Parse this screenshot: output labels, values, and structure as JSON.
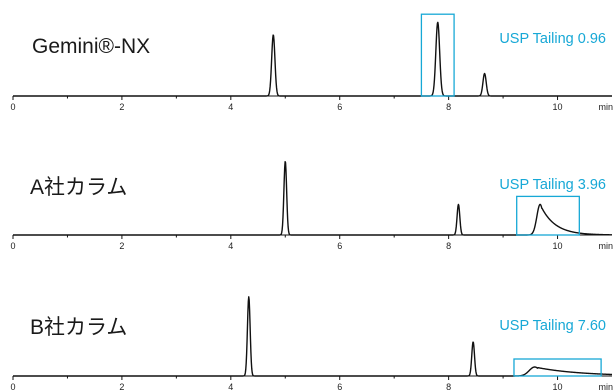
{
  "colors": {
    "accent": "#17a8d6",
    "trace": "#111111"
  },
  "chart_data": [
    {
      "type": "line",
      "title": "Gemini®-NX",
      "annotation": "USP Tailing 0.96",
      "x_unit": "min",
      "xlim": [
        0,
        11
      ],
      "ticks": [
        0,
        2,
        4,
        6,
        8,
        10
      ],
      "grid": false,
      "peaks": [
        {
          "rt": 4.78,
          "height": 0.68,
          "width": 0.03,
          "tail": 0.03
        },
        {
          "rt": 7.8,
          "height": 0.82,
          "width": 0.035,
          "tail": 0.035
        },
        {
          "rt": 8.66,
          "height": 0.25,
          "width": 0.03,
          "tail": 0.03
        }
      ],
      "highlight": {
        "x_from": 7.5,
        "x_to": 8.1
      }
    },
    {
      "type": "line",
      "title": "A社カラム",
      "annotation": "USP Tailing 3.96",
      "x_unit": "min",
      "xlim": [
        0,
        11
      ],
      "ticks": [
        0,
        2,
        4,
        6,
        8,
        10
      ],
      "grid": false,
      "peaks": [
        {
          "rt": 5.0,
          "height": 0.82,
          "width": 0.025,
          "tail": 0.03
        },
        {
          "rt": 8.18,
          "height": 0.34,
          "width": 0.025,
          "tail": 0.03
        },
        {
          "rt": 9.68,
          "height": 0.34,
          "width": 0.06,
          "tail": 0.26
        }
      ],
      "highlight": {
        "x_from": 9.25,
        "x_to": 10.4
      }
    },
    {
      "type": "line",
      "title": "B社カラム",
      "annotation": "USP Tailing 7.60",
      "x_unit": "min",
      "xlim": [
        0,
        11
      ],
      "ticks": [
        0,
        2,
        4,
        6,
        8,
        10
      ],
      "grid": false,
      "peaks": [
        {
          "rt": 4.33,
          "height": 0.88,
          "width": 0.025,
          "tail": 0.03
        },
        {
          "rt": 8.45,
          "height": 0.38,
          "width": 0.025,
          "tail": 0.03
        },
        {
          "rt": 9.58,
          "height": 0.1,
          "width": 0.1,
          "tail": 0.8
        }
      ],
      "highlight": {
        "x_from": 9.2,
        "x_to": 10.8
      }
    }
  ]
}
